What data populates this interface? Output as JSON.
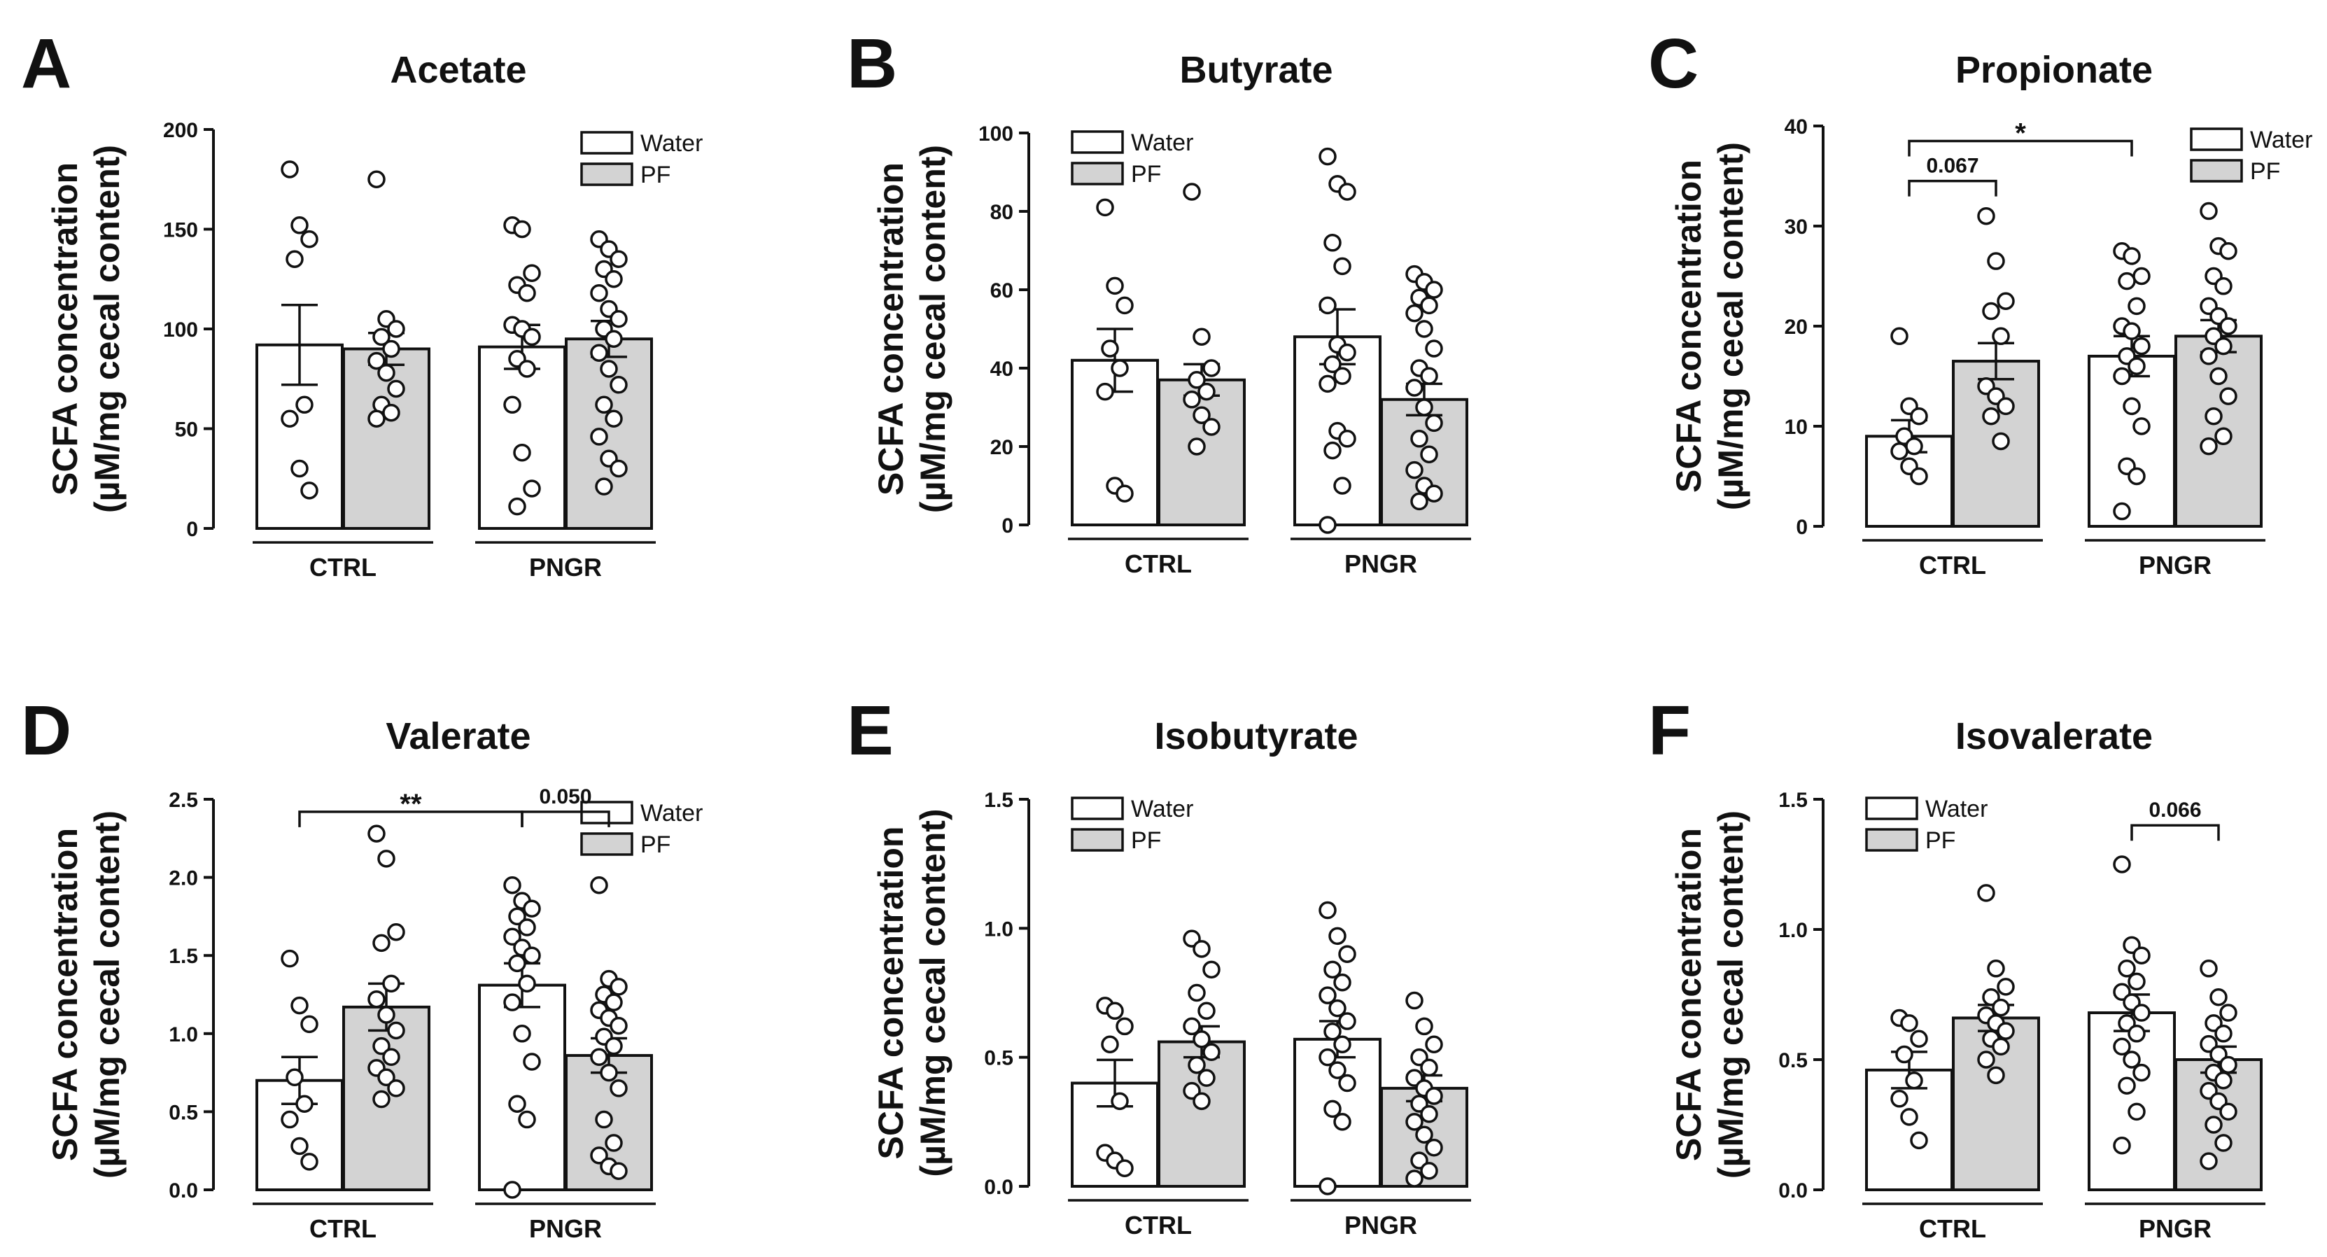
{
  "figure_colors": {
    "water_fill": "#ffffff",
    "pf_fill": "#d3d3d3",
    "stroke": "#111111"
  },
  "chart_data": [
    {
      "type": "bar",
      "panel": "A",
      "title": "Acetate",
      "ylabel_line1": "SCFA concentration",
      "ylabel_line2": "(µM/mg cecal content)",
      "ylim": [
        0,
        200
      ],
      "yticks": [
        0,
        50,
        100,
        150,
        200
      ],
      "ytick_labels": [
        "0",
        "50",
        "100",
        "150",
        "200"
      ],
      "groups": [
        "CTRL",
        "PNGR"
      ],
      "legend": [
        "Water",
        "PF"
      ],
      "legend_position": "top-right",
      "series": [
        {
          "name": "Water",
          "values": [
            92,
            91
          ],
          "sem": [
            20,
            11
          ],
          "points": [
            [
              180,
              152,
              145,
              135,
              62,
              55,
              30,
              19
            ],
            [
              152,
              150,
              128,
              122,
              118,
              102,
              100,
              96,
              85,
              80,
              62,
              38,
              20,
              11
            ]
          ]
        },
        {
          "name": "PF",
          "values": [
            90,
            95
          ],
          "sem": [
            8,
            9
          ],
          "points": [
            [
              175,
              105,
              100,
              96,
              90,
              84,
              78,
              70,
              62,
              58,
              55
            ],
            [
              145,
              140,
              135,
              130,
              125,
              118,
              110,
              105,
              100,
              95,
              88,
              80,
              72,
              62,
              55,
              46,
              35,
              30,
              21
            ]
          ]
        }
      ],
      "annotations": []
    },
    {
      "type": "bar",
      "panel": "B",
      "title": "Butyrate",
      "ylabel_line1": "SCFA concentration",
      "ylabel_line2": "(µM/mg cecal content)",
      "ylim": [
        0,
        100
      ],
      "yticks": [
        0,
        20,
        40,
        60,
        80,
        100
      ],
      "ytick_labels": [
        "0",
        "20",
        "40",
        "60",
        "80",
        "100"
      ],
      "groups": [
        "CTRL",
        "PNGR"
      ],
      "legend": [
        "Water",
        "PF"
      ],
      "legend_position": "top-left",
      "series": [
        {
          "name": "Water",
          "values": [
            42,
            48
          ],
          "sem": [
            8,
            7
          ],
          "points": [
            [
              81,
              61,
              56,
              45,
              40,
              34,
              10,
              8
            ],
            [
              94,
              87,
              85,
              72,
              66,
              56,
              46,
              44,
              41,
              38,
              36,
              24,
              22,
              19,
              10,
              0
            ]
          ]
        },
        {
          "name": "PF",
          "values": [
            37,
            32
          ],
          "sem": [
            4,
            4
          ],
          "points": [
            [
              85,
              48,
              40,
              37,
              34,
              32,
              28,
              25,
              20
            ],
            [
              64,
              62,
              60,
              58,
              56,
              54,
              50,
              45,
              40,
              38,
              35,
              30,
              26,
              22,
              18,
              14,
              10,
              8,
              6
            ]
          ]
        }
      ],
      "annotations": []
    },
    {
      "type": "bar",
      "panel": "C",
      "title": "Propionate",
      "ylabel_line1": "SCFA concentration",
      "ylabel_line2": "(µM/mg cecal content)",
      "ylim": [
        0,
        40
      ],
      "yticks": [
        0,
        10,
        20,
        30,
        40
      ],
      "ytick_labels": [
        "0",
        "10",
        "20",
        "30",
        "40"
      ],
      "groups": [
        "CTRL",
        "PNGR"
      ],
      "legend": [
        "Water",
        "PF"
      ],
      "legend_position": "top-right",
      "series": [
        {
          "name": "Water",
          "values": [
            9,
            17
          ],
          "sem": [
            1.6,
            2
          ],
          "points": [
            [
              19,
              12,
              11,
              9,
              8,
              7.5,
              6,
              5
            ],
            [
              27.5,
              27,
              25,
              24.5,
              22,
              20,
              19.5,
              18,
              17,
              16,
              15,
              12,
              10,
              6,
              5,
              1.5
            ]
          ]
        },
        {
          "name": "PF",
          "values": [
            16.5,
            19
          ],
          "sem": [
            1.8,
            1.6
          ],
          "points": [
            [
              31,
              26.5,
              22.5,
              21.5,
              19,
              14,
              13,
              12,
              11,
              8.5
            ],
            [
              31.5,
              28,
              27.5,
              25,
              24,
              22,
              21,
              20,
              19,
              18,
              17,
              15,
              13,
              11,
              9,
              8
            ]
          ]
        }
      ],
      "annotations": [
        {
          "label": "*",
          "bars": [
            "CTRL-Water",
            "PNGR-Water"
          ],
          "y": 38.5
        },
        {
          "label": "0.067",
          "bars": [
            "CTRL-Water",
            "CTRL-PF"
          ],
          "y": 34.5
        }
      ]
    },
    {
      "type": "bar",
      "panel": "D",
      "title": "Valerate",
      "ylabel_line1": "SCFA concentration",
      "ylabel_line2": "(µM/mg cecal content)",
      "ylim": [
        0,
        2.5
      ],
      "yticks": [
        0,
        0.5,
        1.0,
        1.5,
        2.0,
        2.5
      ],
      "ytick_labels": [
        "0.0",
        "0.5",
        "1.0",
        "1.5",
        "2.0",
        "2.5"
      ],
      "groups": [
        "CTRL",
        "PNGR"
      ],
      "legend": [
        "Water",
        "PF"
      ],
      "legend_position": "top-right",
      "series": [
        {
          "name": "Water",
          "values": [
            0.7,
            1.31
          ],
          "sem": [
            0.15,
            0.14
          ],
          "points": [
            [
              1.48,
              1.18,
              1.06,
              0.72,
              0.55,
              0.45,
              0.28,
              0.18
            ],
            [
              1.95,
              1.85,
              1.8,
              1.75,
              1.68,
              1.62,
              1.55,
              1.5,
              1.45,
              1.32,
              1.2,
              1.0,
              0.82,
              0.55,
              0.45,
              0.0
            ]
          ]
        },
        {
          "name": "PF",
          "values": [
            1.17,
            0.86
          ],
          "sem": [
            0.15,
            0.11
          ],
          "points": [
            [
              2.28,
              2.12,
              1.65,
              1.58,
              1.32,
              1.22,
              1.12,
              1.02,
              0.92,
              0.85,
              0.78,
              0.72,
              0.65,
              0.58
            ],
            [
              1.95,
              1.35,
              1.3,
              1.25,
              1.2,
              1.15,
              1.1,
              1.05,
              0.98,
              0.92,
              0.85,
              0.75,
              0.65,
              0.45,
              0.3,
              0.22,
              0.15,
              0.12
            ]
          ]
        }
      ],
      "annotations": [
        {
          "label": "**",
          "bars": [
            "CTRL-Water",
            "PNGR-Water"
          ],
          "y": 2.42
        },
        {
          "label": "0.050",
          "bars": [
            "PNGR-Water",
            "PNGR-PF"
          ],
          "y": 2.42
        }
      ]
    },
    {
      "type": "bar",
      "panel": "E",
      "title": "Isobutyrate",
      "ylabel_line1": "SCFA concentration",
      "ylabel_line2": "(µM/mg cecal content)",
      "ylim": [
        0,
        1.5
      ],
      "yticks": [
        0,
        0.5,
        1.0,
        1.5
      ],
      "ytick_labels": [
        "0.0",
        "0.5",
        "1.0",
        "1.5"
      ],
      "groups": [
        "CTRL",
        "PNGR"
      ],
      "legend": [
        "Water",
        "PF"
      ],
      "legend_position": "top-left",
      "series": [
        {
          "name": "Water",
          "values": [
            0.4,
            0.57
          ],
          "sem": [
            0.09,
            0.07
          ],
          "points": [
            [
              0.7,
              0.68,
              0.62,
              0.55,
              0.33,
              0.13,
              0.1,
              0.07
            ],
            [
              1.07,
              0.97,
              0.9,
              0.84,
              0.79,
              0.74,
              0.69,
              0.64,
              0.6,
              0.55,
              0.5,
              0.45,
              0.4,
              0.3,
              0.25,
              0.0
            ]
          ]
        },
        {
          "name": "PF",
          "values": [
            0.56,
            0.38
          ],
          "sem": [
            0.06,
            0.05
          ],
          "points": [
            [
              0.96,
              0.92,
              0.84,
              0.75,
              0.68,
              0.62,
              0.57,
              0.52,
              0.47,
              0.42,
              0.37,
              0.33
            ],
            [
              0.72,
              0.62,
              0.55,
              0.5,
              0.46,
              0.42,
              0.38,
              0.35,
              0.32,
              0.28,
              0.25,
              0.2,
              0.15,
              0.1,
              0.06,
              0.03
            ]
          ]
        }
      ],
      "annotations": []
    },
    {
      "type": "bar",
      "panel": "F",
      "title": "Isovalerate",
      "ylabel_line1": "SCFA concentration",
      "ylabel_line2": "(µM/mg cecal content)",
      "ylim": [
        0,
        1.5
      ],
      "yticks": [
        0,
        0.5,
        1.0,
        1.5
      ],
      "ytick_labels": [
        "0.0",
        "0.5",
        "1.0",
        "1.5"
      ],
      "groups": [
        "CTRL",
        "PNGR"
      ],
      "legend": [
        "Water",
        "PF"
      ],
      "legend_position": "top-left",
      "series": [
        {
          "name": "Water",
          "values": [
            0.46,
            0.68
          ],
          "sem": [
            0.07,
            0.07
          ],
          "points": [
            [
              0.66,
              0.64,
              0.58,
              0.52,
              0.42,
              0.35,
              0.28,
              0.19
            ],
            [
              1.25,
              0.94,
              0.9,
              0.85,
              0.8,
              0.76,
              0.72,
              0.68,
              0.64,
              0.6,
              0.55,
              0.5,
              0.45,
              0.4,
              0.3,
              0.17
            ]
          ]
        },
        {
          "name": "PF",
          "values": [
            0.66,
            0.5
          ],
          "sem": [
            0.05,
            0.05
          ],
          "points": [
            [
              1.14,
              0.85,
              0.78,
              0.74,
              0.7,
              0.67,
              0.64,
              0.61,
              0.58,
              0.55,
              0.5,
              0.44
            ],
            [
              0.85,
              0.74,
              0.68,
              0.64,
              0.6,
              0.56,
              0.52,
              0.48,
              0.45,
              0.42,
              0.38,
              0.34,
              0.3,
              0.25,
              0.18,
              0.11
            ]
          ]
        }
      ],
      "annotations": [
        {
          "label": "0.066",
          "bars": [
            "PNGR-Water",
            "PNGR-PF"
          ],
          "y": 1.4
        }
      ]
    }
  ]
}
